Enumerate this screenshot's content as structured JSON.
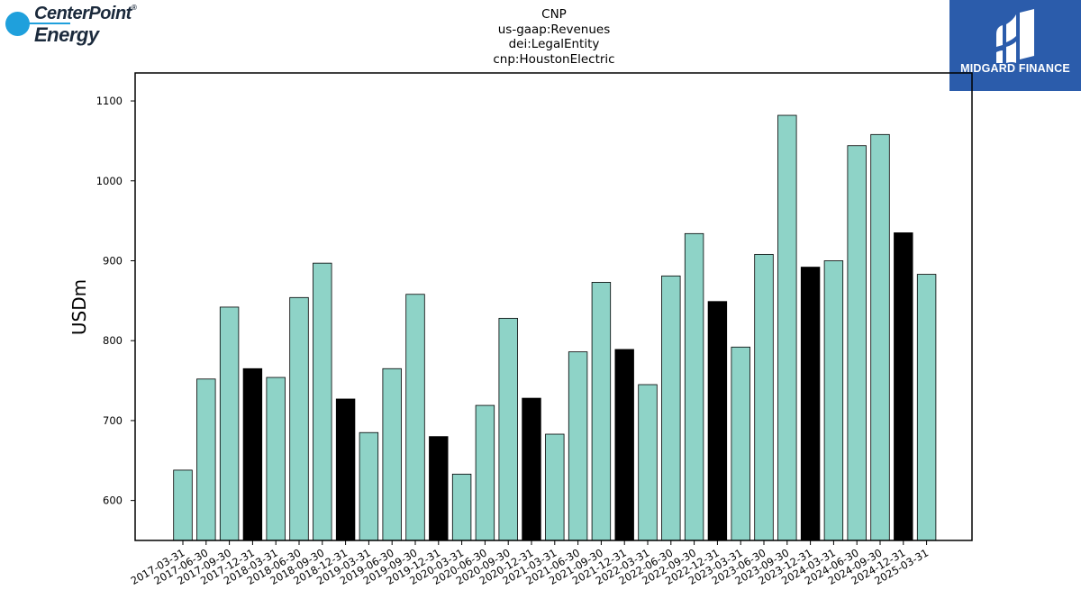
{
  "logo_left": {
    "line1": "CenterPoint",
    "mark": "®",
    "line2": "Energy"
  },
  "logo_right": {
    "brand": "MIDGARD FINANCE",
    "icon": "midgard-logo-icon"
  },
  "colors": {
    "normal": "#8ed3c7",
    "year_end": "#000000",
    "midgard_bg": "#2b5cab",
    "centerpoint_dot": "#1fa0dc"
  },
  "chart_data": {
    "type": "bar",
    "title_lines": [
      "CNP",
      "us-gaap:Revenues",
      "dei:LegalEntity",
      "cnp:HoustonElectric"
    ],
    "xlabel": "",
    "ylabel": "USDm",
    "ylim": [
      550,
      1135
    ],
    "yticks": [
      600,
      700,
      800,
      900,
      1000,
      1100
    ],
    "grid": false,
    "categories": [
      "2017-03-31",
      "2017-06-30",
      "2017-09-30",
      "2017-12-31",
      "2018-03-31",
      "2018-06-30",
      "2018-09-30",
      "2018-12-31",
      "2019-03-31",
      "2019-06-30",
      "2019-09-30",
      "2019-12-31",
      "2020-03-31",
      "2020-06-30",
      "2020-09-30",
      "2020-12-31",
      "2021-03-31",
      "2021-06-30",
      "2021-09-30",
      "2021-12-31",
      "2022-03-31",
      "2022-06-30",
      "2022-09-30",
      "2022-12-31",
      "2023-03-31",
      "2023-06-30",
      "2023-09-30",
      "2023-12-31",
      "2024-03-31",
      "2024-06-30",
      "2024-09-30",
      "2024-12-31",
      "2025-03-31"
    ],
    "values": [
      638,
      752,
      842,
      765,
      754,
      854,
      897,
      727,
      685,
      765,
      858,
      680,
      633,
      719,
      828,
      728,
      683,
      786,
      873,
      789,
      745,
      881,
      934,
      849,
      792,
      908,
      1082,
      892,
      900,
      1044,
      1058,
      935,
      883
    ],
    "highlight_rule": "December 31 periods drawn in black"
  }
}
